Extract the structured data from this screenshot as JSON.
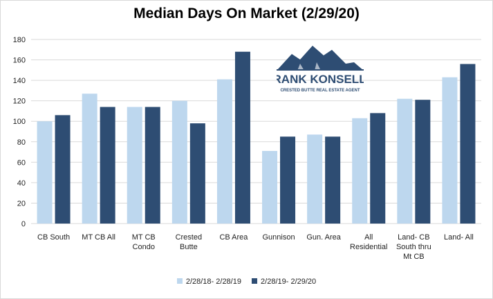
{
  "chart_data": {
    "type": "bar",
    "title": "Median Days On Market (2/29/20)",
    "categories": [
      [
        "CB South"
      ],
      [
        "MT CB All"
      ],
      [
        "MT CB",
        "Condo"
      ],
      [
        "Crested",
        "Butte"
      ],
      [
        "CB Area"
      ],
      [
        "Gunnison"
      ],
      [
        "Gun. Area"
      ],
      [
        "All",
        "Residential"
      ],
      [
        "Land- CB",
        "South thru",
        "Mt CB"
      ],
      [
        "Land- All"
      ]
    ],
    "series": [
      {
        "name": "2/28/18- 2/28/19",
        "color": "#bdd7ee",
        "values": [
          100,
          127,
          114,
          120,
          141,
          71,
          87,
          103,
          122,
          143
        ]
      },
      {
        "name": "2/28/19- 2/29/20",
        "color": "#2e4d73",
        "values": [
          106,
          114,
          114,
          98,
          168,
          85,
          85,
          108,
          121,
          156
        ]
      }
    ],
    "ylim": [
      0,
      180
    ],
    "yticks": [
      0,
      20,
      40,
      60,
      80,
      100,
      120,
      140,
      160,
      180
    ],
    "grid": true,
    "legend": "bottom"
  },
  "logo": {
    "name": "FRANK KONSELLA",
    "tagline": "CRESTED BUTTE REAL ESTATE AGENT",
    "color": "#2e4d73"
  }
}
